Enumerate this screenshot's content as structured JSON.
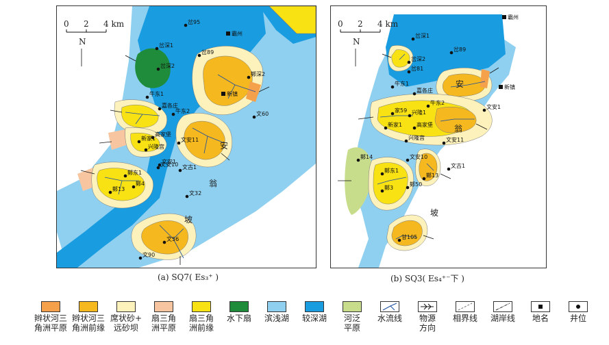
{
  "maps": {
    "a": {
      "caption": "(a) SQ7( Es₃⁺ )",
      "scale": {
        "ticks": [
          "0",
          "2",
          "4 km"
        ]
      },
      "north": "N",
      "wells": [
        "岔95",
        "岔深1",
        "岔深2",
        "岔89",
        "牛东1",
        "嘉各庄",
        "牛东2",
        "文安11",
        "文安1",
        "新家1",
        "高家堡",
        "兴隆宫",
        "文安10",
        "鄚东1",
        "鄚4",
        "鄚13",
        "文古1",
        "文32",
        "文56",
        "文90",
        "鄚深2",
        "文60"
      ],
      "places": [
        "霸州",
        "新镇"
      ],
      "water_labels": [
        "安",
        "翁",
        "坡"
      ]
    },
    "b": {
      "caption": "(b) SQ3( Es₄⁺⁻下 )",
      "scale": {
        "ticks": [
          "0",
          "2",
          "4 km"
        ]
      },
      "north": "N",
      "wells": [
        "岔深1",
        "岔89",
        "岔深2",
        "岔81",
        "牛东1",
        "嘉各庄",
        "家59",
        "兴隆1",
        "牛东2",
        "新家1",
        "高家堡",
        "兴隆宫",
        "文安11",
        "文安1",
        "文安10",
        "鄚14",
        "鄚东1",
        "鄚3",
        "鄚50",
        "文古1",
        "鄚13",
        "甘105"
      ],
      "places": [
        "霸州",
        "新镇"
      ],
      "water_labels": [
        "安",
        "翁",
        "坡"
      ]
    }
  },
  "legend": [
    {
      "label": "辫状河三\n角洲平原",
      "icon": "swatch-braided-delta-plain",
      "color": "#f5a04a"
    },
    {
      "label": "辫状河三\n角洲前缘",
      "icon": "swatch-braided-delta-front",
      "color": "#f5b81e"
    },
    {
      "label": "席状砂+\n远砂坝",
      "icon": "swatch-sheet-sand",
      "color": "#fdf2bb"
    },
    {
      "label": "扇三角\n洲平原",
      "icon": "swatch-fan-delta-plain",
      "color": "#f7c6a0"
    },
    {
      "label": "扇三角\n洲前缘",
      "icon": "swatch-fan-delta-front",
      "color": "#f9e214"
    },
    {
      "label": "水下扇",
      "icon": "swatch-subaqueous-fan",
      "color": "#1e8c3a"
    },
    {
      "label": "滨浅湖",
      "icon": "swatch-shore-shallow-lake",
      "color": "#8fd0f0"
    },
    {
      "label": "较深湖",
      "icon": "swatch-deep-lake",
      "color": "#1a9ce0"
    },
    {
      "label": "河泛\n平原",
      "icon": "swatch-floodplain",
      "color": "#c8dd8c"
    },
    {
      "label": "水流线",
      "icon": "flow-line-icon",
      "color": ""
    },
    {
      "label": "物源\n方向",
      "icon": "source-direction-icon",
      "color": ""
    },
    {
      "label": "相界线",
      "icon": "facies-boundary-icon",
      "color": ""
    },
    {
      "label": "湖岸线",
      "icon": "lake-shoreline-icon",
      "color": ""
    },
    {
      "label": "地名",
      "icon": "place-name-icon",
      "color": ""
    },
    {
      "label": "井位",
      "icon": "well-location-icon",
      "color": ""
    }
  ]
}
